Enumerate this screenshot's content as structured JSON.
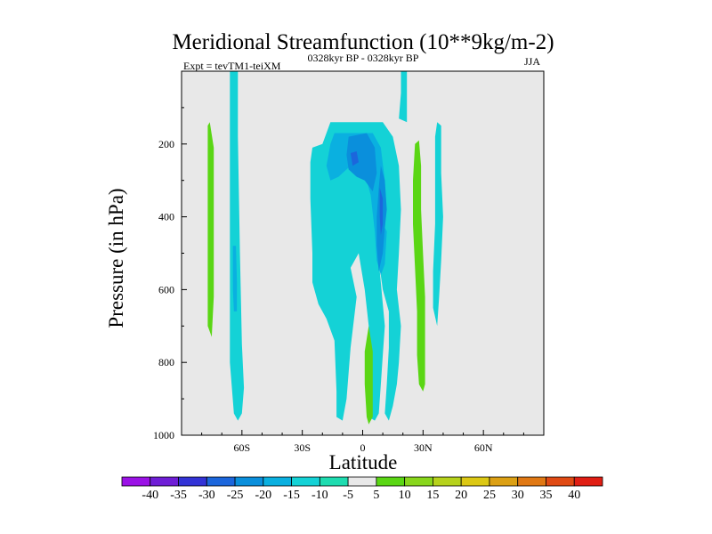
{
  "chart_data": {
    "type": "contour",
    "title": "Meridional Streamfunction (10**9kg/m-2)",
    "subtitle_left": "Expt = tevTM1-teiXM",
    "subtitle_center": "0328kyr BP - 0328kyr BP",
    "subtitle_right": "JJA",
    "xlabel": "Latitude",
    "ylabel": "Pressure (in hPa)",
    "xlim": [
      -90,
      90
    ],
    "ylim": [
      0,
      1000
    ],
    "y_reversed": true,
    "x_ticks": [
      {
        "value": -60,
        "label": "60S"
      },
      {
        "value": -30,
        "label": "30S"
      },
      {
        "value": 0,
        "label": "0"
      },
      {
        "value": 30,
        "label": "30N"
      },
      {
        "value": 60,
        "label": "60N"
      }
    ],
    "y_ticks": [
      {
        "value": 200,
        "label": "200"
      },
      {
        "value": 400,
        "label": "400"
      },
      {
        "value": 600,
        "label": "600"
      },
      {
        "value": 800,
        "label": "800"
      },
      {
        "value": 1000,
        "label": "1000"
      }
    ],
    "background_color": "#e8e8e8",
    "colorbar": {
      "labels": [
        "-40",
        "-35",
        "-30",
        "-25",
        "-20",
        "-15",
        "-10",
        "-5",
        "5",
        "10",
        "15",
        "20",
        "25",
        "30",
        "35",
        "40"
      ],
      "colors": [
        "#9b12e6",
        "#6f1ed6",
        "#3333d6",
        "#1c66dc",
        "#0a8fdc",
        "#0ab0e0",
        "#14d2d6",
        "#1edcb0",
        "#e8e8e8",
        "#5ad614",
        "#88d61c",
        "#b6d21c",
        "#dcc814",
        "#dca014",
        "#e07814",
        "#e04a14",
        "#e01e14"
      ]
    },
    "regions": [
      {
        "level": "5 to 10",
        "points": [
          [
            -76,
            140
          ],
          [
            -74,
            210
          ],
          [
            -74,
            400
          ],
          [
            -74,
            620
          ],
          [
            -75,
            730
          ],
          [
            -77,
            700
          ],
          [
            -77,
            380
          ],
          [
            -77,
            200
          ],
          [
            -77,
            150
          ]
        ]
      },
      {
        "level": "-5 to -10",
        "points": [
          [
            -66,
            0
          ],
          [
            -62,
            0
          ],
          [
            -62,
            180
          ],
          [
            -61,
            500
          ],
          [
            -60,
            750
          ],
          [
            -59,
            870
          ],
          [
            -60,
            940
          ],
          [
            -62,
            960
          ],
          [
            -64,
            940
          ],
          [
            -66,
            800
          ],
          [
            -66,
            300
          ],
          [
            -66,
            100
          ]
        ]
      },
      {
        "level": "-10 to -15",
        "points": [
          [
            -64.5,
            480
          ],
          [
            -63,
            480
          ],
          [
            -62.5,
            580
          ],
          [
            -62.5,
            660
          ],
          [
            -64,
            660
          ],
          [
            -64.5,
            600
          ]
        ]
      },
      {
        "level": "-5 to -10",
        "points": [
          [
            -16,
            140
          ],
          [
            10,
            140
          ],
          [
            15,
            180
          ],
          [
            18,
            260
          ],
          [
            19,
            380
          ],
          [
            18,
            500
          ],
          [
            17,
            600
          ],
          [
            19,
            700
          ],
          [
            18,
            800
          ],
          [
            17,
            860
          ],
          [
            15,
            920
          ],
          [
            13,
            960
          ],
          [
            11,
            940
          ],
          [
            12,
            860
          ],
          [
            13,
            760
          ],
          [
            13,
            660
          ],
          [
            10,
            600
          ],
          [
            8,
            520
          ],
          [
            11,
            700
          ],
          [
            10,
            780
          ],
          [
            9,
            860
          ],
          [
            8,
            940
          ],
          [
            6,
            960
          ],
          [
            3,
            950
          ],
          [
            4,
            880
          ],
          [
            4,
            770
          ],
          [
            3,
            700
          ],
          [
            1,
            600
          ],
          [
            -2,
            500
          ],
          [
            -6,
            540
          ],
          [
            -3,
            620
          ],
          [
            -6,
            760
          ],
          [
            -8,
            900
          ],
          [
            -10,
            960
          ],
          [
            -13,
            950
          ],
          [
            -13,
            880
          ],
          [
            -14,
            740
          ],
          [
            -18,
            680
          ],
          [
            -22,
            640
          ],
          [
            -25,
            580
          ],
          [
            -25,
            500
          ],
          [
            -26,
            350
          ],
          [
            -26,
            250
          ],
          [
            -25,
            210
          ],
          [
            -20,
            200
          ]
        ]
      },
      {
        "level": "-10 to -15",
        "points": [
          [
            -14,
            170
          ],
          [
            5,
            170
          ],
          [
            9,
            210
          ],
          [
            11,
            300
          ],
          [
            11,
            380
          ],
          [
            10,
            420
          ],
          [
            12,
            440
          ],
          [
            11,
            530
          ],
          [
            9,
            560
          ],
          [
            7,
            520
          ],
          [
            6,
            440
          ],
          [
            4,
            340
          ],
          [
            2,
            300
          ],
          [
            -1,
            250
          ],
          [
            -6,
            260
          ],
          [
            -12,
            290
          ],
          [
            -16,
            300
          ],
          [
            -18,
            260
          ],
          [
            -16,
            200
          ]
        ]
      },
      {
        "level": "-15 to -20",
        "points": [
          [
            -7,
            180
          ],
          [
            2,
            170
          ],
          [
            6,
            210
          ],
          [
            7,
            280
          ],
          [
            5,
            330
          ],
          [
            1,
            300
          ],
          [
            -3,
            290
          ],
          [
            -7,
            270
          ],
          [
            -8,
            230
          ]
        ]
      },
      {
        "level": "-20 to -25",
        "points": [
          [
            -6,
            225
          ],
          [
            -3,
            220
          ],
          [
            -2,
            250
          ],
          [
            -5,
            260
          ]
        ]
      },
      {
        "level": "-15 to -20",
        "points": [
          [
            9,
            260
          ],
          [
            11,
            300
          ],
          [
            12,
            380
          ],
          [
            11,
            430
          ],
          [
            10,
            500
          ],
          [
            8,
            550
          ],
          [
            7,
            480
          ],
          [
            7,
            400
          ],
          [
            8,
            320
          ]
        ]
      },
      {
        "level": "-20 to -25",
        "points": [
          [
            8.5,
            320
          ],
          [
            10,
            350
          ],
          [
            10,
            420
          ],
          [
            9,
            450
          ],
          [
            8.5,
            400
          ]
        ]
      },
      {
        "level": "-5 to -10",
        "points": [
          [
            19,
            0
          ],
          [
            22,
            0
          ],
          [
            22,
            140
          ],
          [
            18,
            130
          ],
          [
            19,
            60
          ]
        ]
      },
      {
        "level": "5 to 10",
        "points": [
          [
            26,
            200
          ],
          [
            28,
            190
          ],
          [
            29,
            260
          ],
          [
            29,
            380
          ],
          [
            30,
            500
          ],
          [
            31,
            620
          ],
          [
            31,
            720
          ],
          [
            31,
            800
          ],
          [
            31,
            860
          ],
          [
            30,
            880
          ],
          [
            28,
            860
          ],
          [
            27,
            780
          ],
          [
            27,
            660
          ],
          [
            26,
            540
          ],
          [
            25,
            420
          ],
          [
            25,
            300
          ]
        ]
      },
      {
        "level": "5 to 10",
        "points": [
          [
            3,
            700
          ],
          [
            5,
            770
          ],
          [
            5,
            860
          ],
          [
            5,
            950
          ],
          [
            3,
            970
          ],
          [
            2,
            950
          ],
          [
            1,
            860
          ],
          [
            1,
            770
          ]
        ]
      },
      {
        "level": "-5 to -10",
        "points": [
          [
            37,
            140
          ],
          [
            39,
            150
          ],
          [
            39,
            280
          ],
          [
            40,
            400
          ],
          [
            39,
            520
          ],
          [
            38,
            620
          ],
          [
            37,
            700
          ],
          [
            35,
            650
          ],
          [
            35,
            550
          ],
          [
            36,
            420
          ],
          [
            36,
            280
          ],
          [
            36,
            180
          ]
        ]
      }
    ]
  }
}
